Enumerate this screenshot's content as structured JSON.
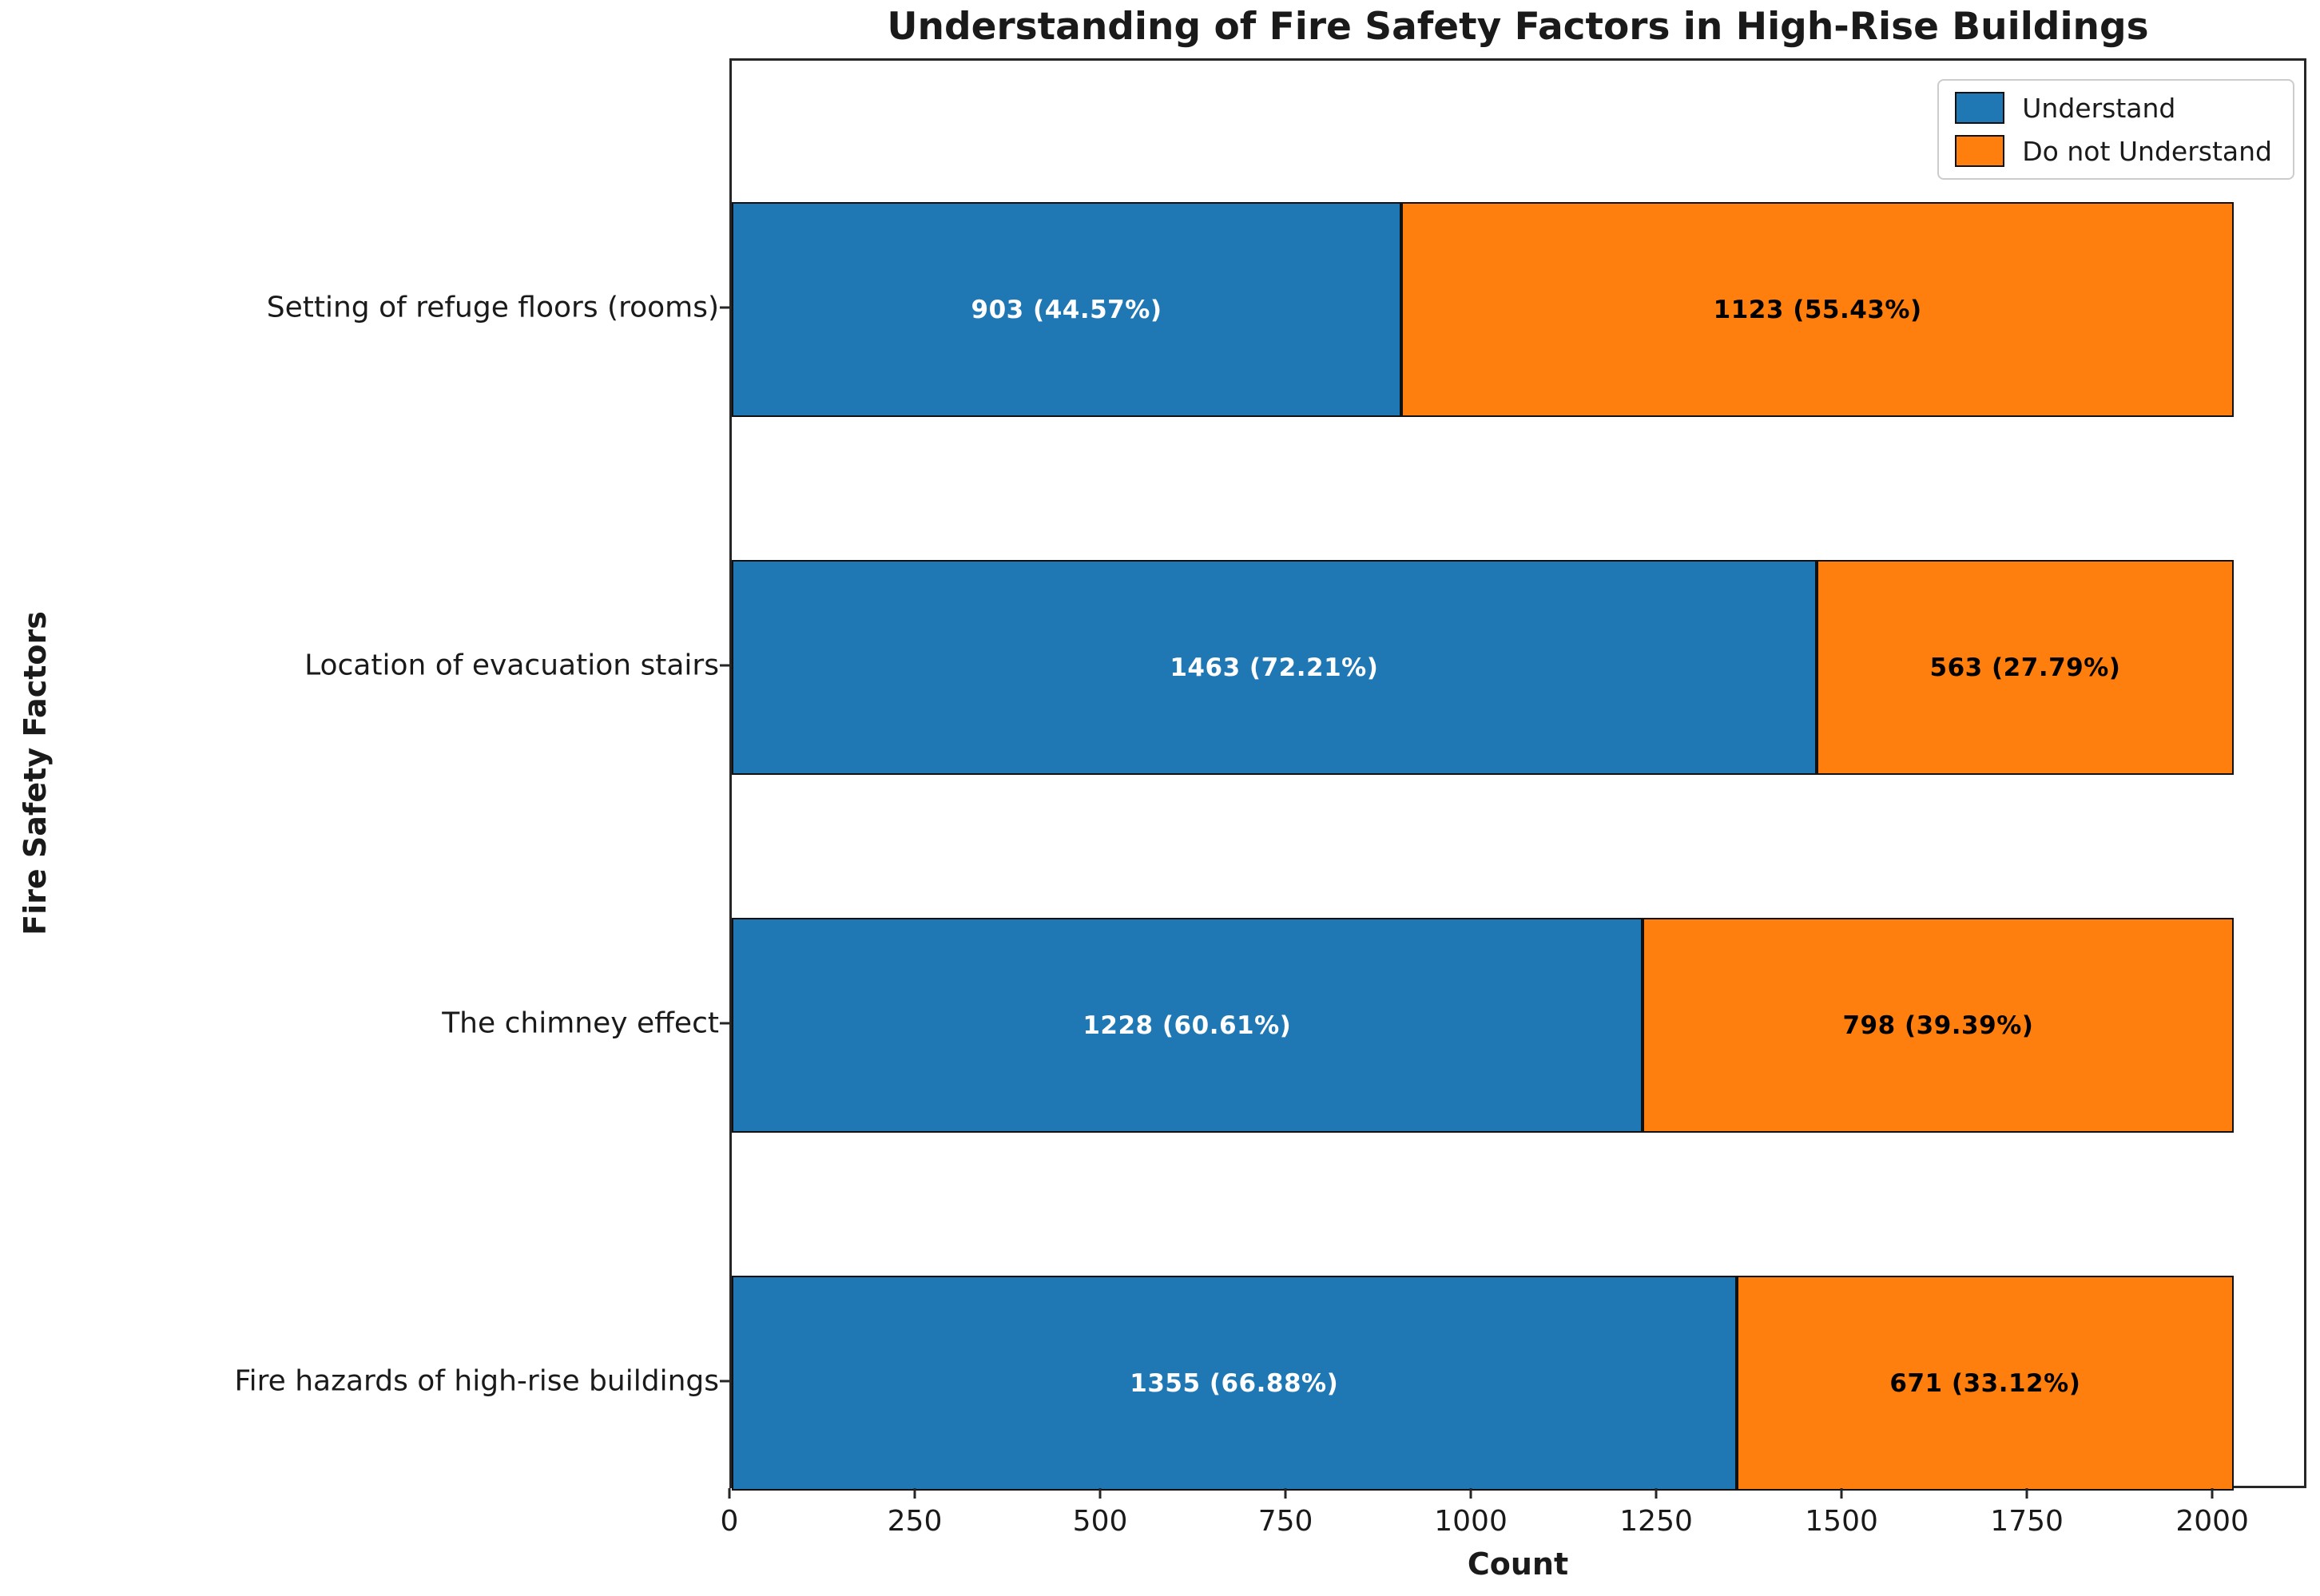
{
  "title": "Understanding of Fire Safety Factors in High-Rise Buildings",
  "chart_data": {
    "type": "bar",
    "orientation": "horizontal",
    "stacked": true,
    "title": "Understanding of Fire Safety Factors in High-Rise Buildings",
    "xlabel": "Count",
    "ylabel": "Fire Safety Factors",
    "grid": false,
    "legend_position": "upper right",
    "xlim": [
      0,
      2127
    ],
    "xticks": [
      "0",
      "250",
      "500",
      "750",
      "1000",
      "1250",
      "1500",
      "1750",
      "2000"
    ],
    "xtick_values": [
      0,
      250,
      500,
      750,
      1000,
      1250,
      1500,
      1750,
      2000
    ],
    "categories": [
      "Setting of refuge floors (rooms)",
      "Location of evacuation stairs",
      "The chimney effect",
      "Fire hazards of high-rise buildings"
    ],
    "series": [
      {
        "name": "Understand",
        "color": "#1f77b4",
        "label_color": "#ffffff",
        "values": [
          903,
          1463,
          1228,
          1355
        ],
        "labels": [
          "903 (44.57%)",
          "1463 (72.21%)",
          "1228 (60.61%)",
          "1355 (66.88%)"
        ]
      },
      {
        "name": "Do not Understand",
        "color": "#ff7f0e",
        "label_color": "#000000",
        "values": [
          1123,
          563,
          798,
          671
        ],
        "labels": [
          "1123 (55.43%)",
          "563 (27.79%)",
          "798 (39.39%)",
          "671 (33.12%)"
        ]
      }
    ],
    "bar_edge_color": "#111111"
  }
}
